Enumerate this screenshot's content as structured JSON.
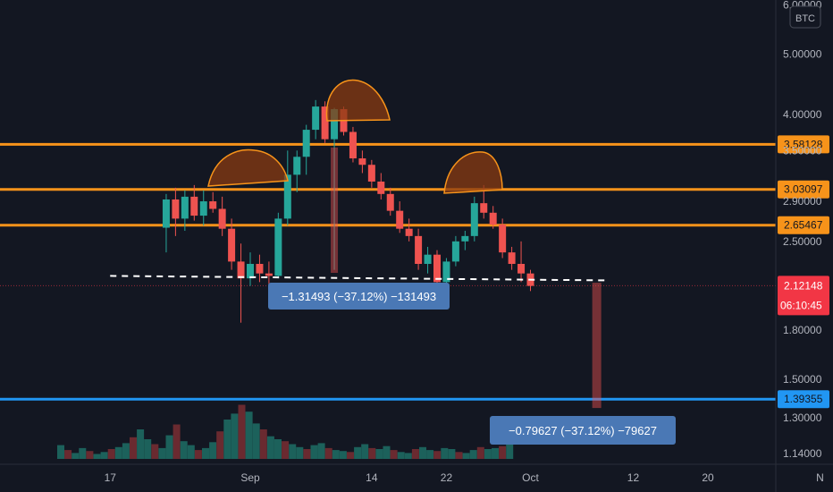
{
  "chart_data": {
    "type": "candlestick",
    "title": "",
    "xlabel": "",
    "ylabel": "",
    "y_scale": "log",
    "ylim": [
      1.05,
      6.0
    ],
    "currency": "BTC",
    "x_ticks": [
      {
        "label": "17",
        "date": "2021-08-17"
      },
      {
        "label": "Sep",
        "date": "2021-09-01"
      },
      {
        "label": "14",
        "date": "2021-09-14"
      },
      {
        "label": "22",
        "date": "2021-09-22"
      },
      {
        "label": "Oct",
        "date": "2021-10-01"
      },
      {
        "label": "12",
        "date": "2021-10-12"
      },
      {
        "label": "20",
        "date": "2021-10-20"
      },
      {
        "label": "N",
        "date": "2021-11-01"
      }
    ],
    "y_ticks": [
      "6.00000",
      "5.00000",
      "4.00000",
      "3.50000",
      "2.90000",
      "2.50000",
      "1.80000",
      "1.50000",
      "1.30000",
      "1.14000"
    ],
    "levels": [
      {
        "value": 3.58128,
        "label": "3.58128",
        "color": "#f7931a"
      },
      {
        "value": 3.03097,
        "label": "3.03097",
        "color": "#f7931a"
      },
      {
        "value": 2.65467,
        "label": "2.65467",
        "color": "#f7931a"
      },
      {
        "value": 1.39355,
        "label": "1.39355",
        "color": "#2196f3"
      }
    ],
    "neckline": 2.2,
    "last_price": {
      "value": 2.12148,
      "label": "2.12148",
      "countdown": "06:10:45",
      "color": "#f23645"
    },
    "candles": [
      {
        "date": "2021-08-23",
        "o": 2.63,
        "h": 2.98,
        "l": 2.4,
        "c": 2.92
      },
      {
        "date": "2021-08-24",
        "o": 2.92,
        "h": 3.05,
        "l": 2.55,
        "c": 2.72
      },
      {
        "date": "2021-08-25",
        "o": 2.72,
        "h": 3.02,
        "l": 2.6,
        "c": 2.95
      },
      {
        "date": "2021-08-26",
        "o": 2.95,
        "h": 3.08,
        "l": 2.7,
        "c": 2.75
      },
      {
        "date": "2021-08-27",
        "o": 2.75,
        "h": 3.02,
        "l": 2.65,
        "c": 2.9
      },
      {
        "date": "2021-08-28",
        "o": 2.9,
        "h": 3.0,
        "l": 2.78,
        "c": 2.82
      },
      {
        "date": "2021-08-29",
        "o": 2.82,
        "h": 2.95,
        "l": 2.55,
        "c": 2.62
      },
      {
        "date": "2021-08-30",
        "o": 2.62,
        "h": 2.72,
        "l": 2.25,
        "c": 2.32
      },
      {
        "date": "2021-08-31",
        "o": 2.32,
        "h": 2.48,
        "l": 1.85,
        "c": 2.18
      },
      {
        "date": "2021-09-01",
        "o": 2.18,
        "h": 2.4,
        "l": 2.12,
        "c": 2.3
      },
      {
        "date": "2021-09-02",
        "o": 2.3,
        "h": 2.38,
        "l": 2.15,
        "c": 2.22
      },
      {
        "date": "2021-09-03",
        "o": 2.22,
        "h": 2.32,
        "l": 2.12,
        "c": 2.2
      },
      {
        "date": "2021-09-04",
        "o": 2.2,
        "h": 2.78,
        "l": 2.18,
        "c": 2.72
      },
      {
        "date": "2021-09-05",
        "o": 2.72,
        "h": 3.5,
        "l": 2.65,
        "c": 3.2
      },
      {
        "date": "2021-09-06",
        "o": 3.2,
        "h": 3.5,
        "l": 3.0,
        "c": 3.42
      },
      {
        "date": "2021-09-07",
        "o": 3.42,
        "h": 3.85,
        "l": 3.2,
        "c": 3.78
      },
      {
        "date": "2021-09-08",
        "o": 3.78,
        "h": 4.22,
        "l": 3.65,
        "c": 4.12
      },
      {
        "date": "2021-09-09",
        "o": 4.12,
        "h": 4.2,
        "l": 3.6,
        "c": 3.65
      },
      {
        "date": "2021-09-10",
        "o": 3.65,
        "h": 4.1,
        "l": 2.25,
        "c": 4.08
      },
      {
        "date": "2021-09-11",
        "o": 4.08,
        "h": 4.12,
        "l": 3.7,
        "c": 3.75
      },
      {
        "date": "2021-09-12",
        "o": 3.75,
        "h": 3.82,
        "l": 3.35,
        "c": 3.4
      },
      {
        "date": "2021-09-13",
        "o": 3.4,
        "h": 3.5,
        "l": 3.22,
        "c": 3.32
      },
      {
        "date": "2021-09-14",
        "o": 3.32,
        "h": 3.38,
        "l": 3.05,
        "c": 3.12
      },
      {
        "date": "2021-09-15",
        "o": 3.12,
        "h": 3.22,
        "l": 2.92,
        "c": 2.98
      },
      {
        "date": "2021-09-16",
        "o": 2.98,
        "h": 3.05,
        "l": 2.75,
        "c": 2.8
      },
      {
        "date": "2021-09-17",
        "o": 2.8,
        "h": 2.9,
        "l": 2.58,
        "c": 2.62
      },
      {
        "date": "2021-09-18",
        "o": 2.62,
        "h": 2.72,
        "l": 2.5,
        "c": 2.55
      },
      {
        "date": "2021-09-19",
        "o": 2.55,
        "h": 2.62,
        "l": 2.25,
        "c": 2.3
      },
      {
        "date": "2021-09-20",
        "o": 2.3,
        "h": 2.45,
        "l": 2.22,
        "c": 2.38
      },
      {
        "date": "2021-09-21",
        "o": 2.38,
        "h": 2.42,
        "l": 2.12,
        "c": 2.15
      },
      {
        "date": "2021-09-22",
        "o": 2.15,
        "h": 2.35,
        "l": 2.12,
        "c": 2.32
      },
      {
        "date": "2021-09-23",
        "o": 2.32,
        "h": 2.55,
        "l": 2.28,
        "c": 2.5
      },
      {
        "date": "2021-09-24",
        "o": 2.5,
        "h": 2.6,
        "l": 2.42,
        "c": 2.55
      },
      {
        "date": "2021-09-25",
        "o": 2.55,
        "h": 2.95,
        "l": 2.5,
        "c": 2.88
      },
      {
        "date": "2021-09-26",
        "o": 2.88,
        "h": 3.08,
        "l": 2.72,
        "c": 2.78
      },
      {
        "date": "2021-09-27",
        "o": 2.78,
        "h": 2.85,
        "l": 2.62,
        "c": 2.66
      },
      {
        "date": "2021-09-28",
        "o": 2.66,
        "h": 2.72,
        "l": 2.35,
        "c": 2.4
      },
      {
        "date": "2021-09-29",
        "o": 2.4,
        "h": 2.45,
        "l": 2.25,
        "c": 2.3
      },
      {
        "date": "2021-09-30",
        "o": 2.3,
        "h": 2.5,
        "l": 2.15,
        "c": 2.22
      },
      {
        "date": "2021-10-01",
        "o": 2.22,
        "h": 2.25,
        "l": 2.08,
        "c": 2.12
      }
    ],
    "volume_note": "volume bars shown at bottom (unlabeled)",
    "measurements": [
      {
        "label": "−1.31493 (−37.12%) −131493",
        "from": 3.54,
        "to": 2.225
      },
      {
        "label": "−0.79627 (−37.12%) −79627",
        "from": 2.14493,
        "to": 1.34866
      }
    ]
  }
}
